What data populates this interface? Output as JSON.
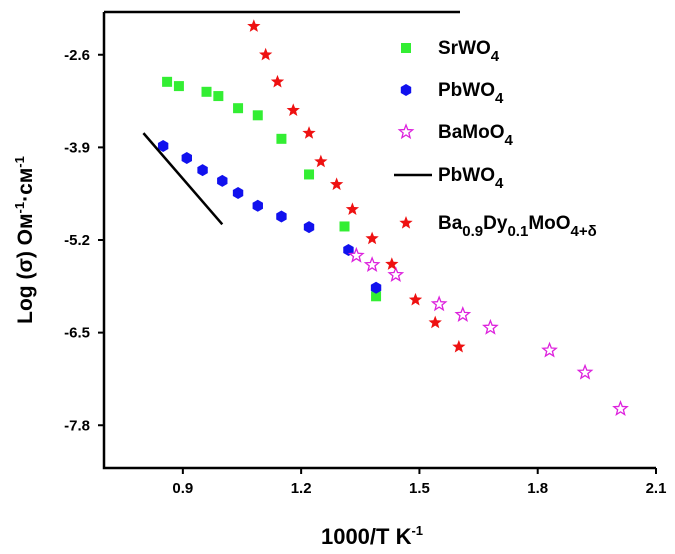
{
  "chart_data": {
    "type": "scatter",
    "xlabel": "1000/T K",
    "xlabel_sup": "-1",
    "ylabel": "Log (σ) Ом",
    "ylabel_sup1": "-1",
    "ylabel_mid": "·см",
    "ylabel_sup2": "-1",
    "xlim": [
      0.7,
      2.1
    ],
    "ylim": [
      -8.4,
      -2.0
    ],
    "xticks": [
      0.9,
      1.2,
      1.5,
      1.8,
      2.1
    ],
    "yticks": [
      -2.6,
      -3.9,
      -5.2,
      -6.5,
      -7.8
    ],
    "xtick_labels": [
      "0.9",
      "1.2",
      "1.5",
      "1.8",
      "2.1"
    ],
    "ytick_labels": [
      "-2.6",
      "-3.9",
      "-5.2",
      "-6.5",
      "-7.8"
    ],
    "legend_position": "top-right",
    "series": [
      {
        "key": "srwo4",
        "name_main": "SrWO",
        "name_sub": "4",
        "marker": "square",
        "color": "#33ee33",
        "x": [
          0.86,
          0.89,
          0.96,
          0.99,
          1.04,
          1.09,
          1.15,
          1.22,
          1.31,
          1.39
        ],
        "y": [
          -2.98,
          -3.04,
          -3.12,
          -3.18,
          -3.35,
          -3.45,
          -3.78,
          -4.28,
          -5.01,
          -5.99
        ]
      },
      {
        "key": "pbwo4",
        "name_main": "PbWO",
        "name_sub": "4",
        "marker": "hexagon",
        "color": "#1111ee",
        "x": [
          0.85,
          0.91,
          0.95,
          1.0,
          1.04,
          1.09,
          1.15,
          1.22,
          1.32,
          1.39
        ],
        "y": [
          -3.88,
          -4.05,
          -4.22,
          -4.37,
          -4.54,
          -4.72,
          -4.87,
          -5.02,
          -5.34,
          -5.87
        ]
      },
      {
        "key": "bamoo4",
        "name_main": "BaMoO",
        "name_sub": "4",
        "marker": "star-open",
        "color": "#dd22dd",
        "x": [
          1.34,
          1.38,
          1.44,
          1.55,
          1.61,
          1.68,
          1.83,
          1.92,
          2.01
        ],
        "y": [
          -5.42,
          -5.55,
          -5.69,
          -6.1,
          -6.25,
          -6.43,
          -6.75,
          -7.06,
          -7.57
        ]
      },
      {
        "key": "pbwo4_line",
        "name_main": "PbWO",
        "name_sub": "4",
        "marker": "line",
        "color": "#000000",
        "x": [
          0.8,
          1.0
        ],
        "y": [
          -3.7,
          -4.98
        ]
      },
      {
        "key": "bdmo",
        "name_main": "Ba",
        "name_s1": "0.9",
        "name_m2": "Dy",
        "name_s2": "0.1",
        "name_m3": "MoO",
        "name_s3": "4+δ",
        "marker": "star",
        "color": "#ee1111",
        "x": [
          1.08,
          1.11,
          1.14,
          1.18,
          1.22,
          1.25,
          1.29,
          1.33,
          1.38,
          1.43,
          1.49,
          1.54,
          1.6
        ],
        "y": [
          -2.2,
          -2.6,
          -2.98,
          -3.38,
          -3.7,
          -4.1,
          -4.42,
          -4.77,
          -5.18,
          -5.54,
          -6.04,
          -6.36,
          -6.7
        ]
      }
    ]
  }
}
